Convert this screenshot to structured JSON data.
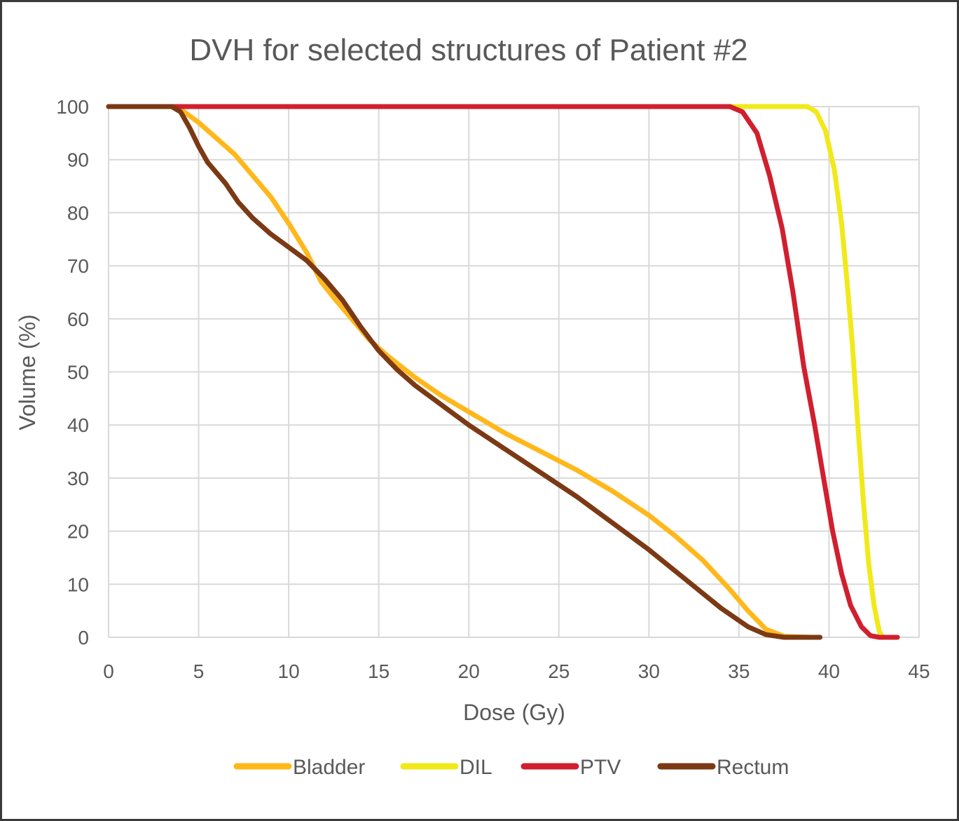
{
  "chart_data": {
    "type": "line",
    "title": "DVH for selected structures of Patient #2",
    "xlabel": "Dose (Gy)",
    "ylabel": "Volume (%)",
    "xlim": [
      0,
      45
    ],
    "ylim": [
      0,
      100
    ],
    "xticks": [
      0,
      5,
      10,
      15,
      20,
      25,
      30,
      35,
      40,
      45
    ],
    "yticks": [
      0,
      10,
      20,
      30,
      40,
      50,
      60,
      70,
      80,
      90,
      100
    ],
    "grid": true,
    "legend_position": "bottom",
    "series": [
      {
        "name": "Bladder",
        "color": "#FFB81C",
        "points": [
          [
            0,
            100
          ],
          [
            3.5,
            100
          ],
          [
            4,
            99.5
          ],
          [
            5,
            97
          ],
          [
            6,
            94
          ],
          [
            7,
            91
          ],
          [
            8,
            87
          ],
          [
            9,
            83
          ],
          [
            10,
            78
          ],
          [
            11,
            72.5
          ],
          [
            11.8,
            67
          ],
          [
            12.5,
            64
          ],
          [
            13.5,
            60
          ],
          [
            14.5,
            56
          ],
          [
            15.5,
            53
          ],
          [
            17,
            49
          ],
          [
            18.5,
            45.5
          ],
          [
            20,
            42.5
          ],
          [
            22,
            38.5
          ],
          [
            24,
            35
          ],
          [
            26,
            31.5
          ],
          [
            28,
            27.5
          ],
          [
            30,
            23
          ],
          [
            31.5,
            19
          ],
          [
            33,
            14.5
          ],
          [
            34.5,
            9
          ],
          [
            35.5,
            5
          ],
          [
            36.5,
            1.5
          ],
          [
            37.5,
            0.2
          ],
          [
            39,
            0
          ]
        ]
      },
      {
        "name": "DIL",
        "color": "#F1E91A",
        "points": [
          [
            0,
            100
          ],
          [
            38.8,
            100
          ],
          [
            39.3,
            99
          ],
          [
            39.8,
            95.5
          ],
          [
            40.3,
            88
          ],
          [
            40.7,
            78
          ],
          [
            41,
            67
          ],
          [
            41.3,
            55
          ],
          [
            41.6,
            40
          ],
          [
            41.9,
            26
          ],
          [
            42.2,
            14
          ],
          [
            42.5,
            6
          ],
          [
            42.8,
            1
          ],
          [
            43,
            0
          ]
        ]
      },
      {
        "name": "PTV",
        "color": "#D0202F",
        "points": [
          [
            0,
            100
          ],
          [
            34.5,
            100
          ],
          [
            35.2,
            99
          ],
          [
            36,
            95
          ],
          [
            36.7,
            87
          ],
          [
            37.4,
            77
          ],
          [
            38,
            65
          ],
          [
            38.6,
            51
          ],
          [
            39.2,
            40
          ],
          [
            39.7,
            30
          ],
          [
            40.2,
            20
          ],
          [
            40.7,
            12
          ],
          [
            41.2,
            6
          ],
          [
            41.8,
            2
          ],
          [
            42.3,
            0.3
          ],
          [
            42.8,
            0
          ],
          [
            43.8,
            0
          ]
        ]
      },
      {
        "name": "Rectum",
        "color": "#7B3914",
        "points": [
          [
            0,
            100
          ],
          [
            3.5,
            100
          ],
          [
            4,
            99
          ],
          [
            4.5,
            96
          ],
          [
            5,
            92.5
          ],
          [
            5.5,
            89.5
          ],
          [
            6.5,
            85.5
          ],
          [
            7.2,
            82
          ],
          [
            8,
            79
          ],
          [
            9,
            76
          ],
          [
            10,
            73.5
          ],
          [
            11,
            71
          ],
          [
            12,
            67.5
          ],
          [
            13,
            63.5
          ],
          [
            14,
            58.5
          ],
          [
            15,
            54
          ],
          [
            16,
            50.5
          ],
          [
            17,
            47.5
          ],
          [
            18,
            45
          ],
          [
            19,
            42.5
          ],
          [
            20,
            40
          ],
          [
            22,
            35.5
          ],
          [
            24,
            31
          ],
          [
            26,
            26.5
          ],
          [
            28,
            21.5
          ],
          [
            30,
            16.5
          ],
          [
            32,
            11
          ],
          [
            34,
            5.5
          ],
          [
            35.5,
            2
          ],
          [
            36.5,
            0.5
          ],
          [
            37.5,
            0
          ],
          [
            39.5,
            0
          ]
        ]
      }
    ]
  }
}
